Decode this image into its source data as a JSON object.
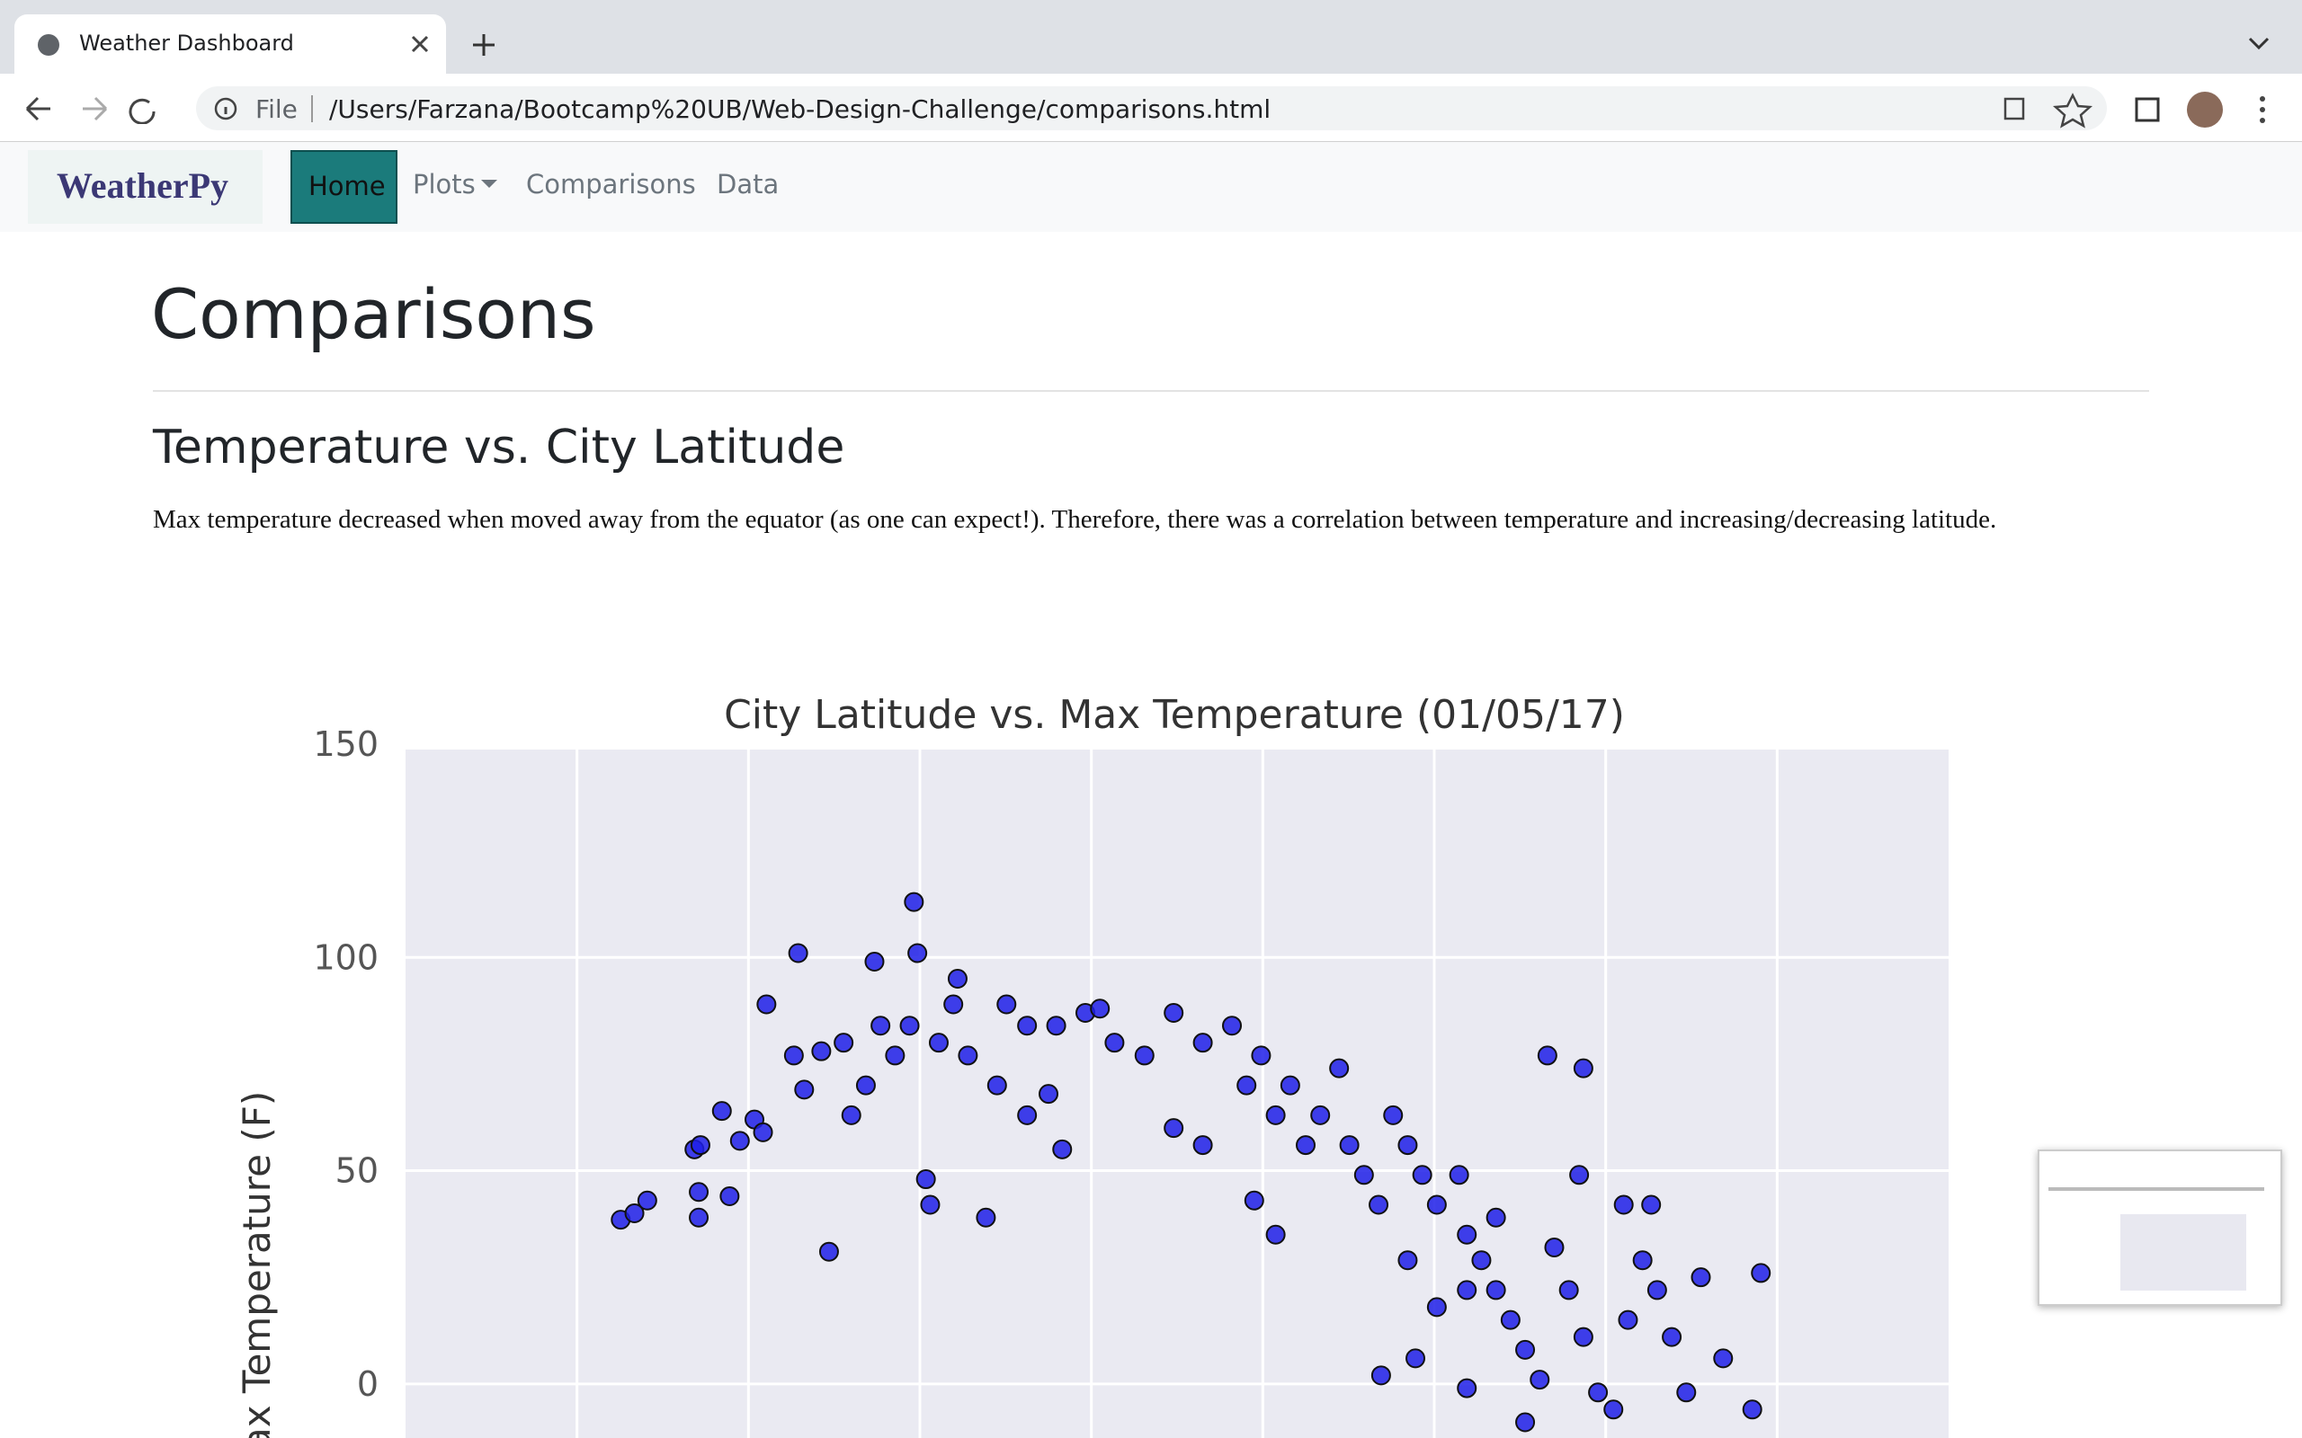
{
  "browser": {
    "tab_title": "Weather Dashboard",
    "scheme": "File",
    "url": "/Users/Farzana/Bootcamp%20UB/Web-Design-Challenge/comparisons.html"
  },
  "navbar": {
    "brand": "WeatherPy",
    "items": [
      "Home",
      "Plots",
      "Comparisons",
      "Data"
    ]
  },
  "content": {
    "heading": "Comparisons",
    "subheading": "Temperature vs. City Latitude",
    "paragraph": "Max temperature decreased when moved away from the equator (as one can expect!). Therefore, there was a correlation between temperature and increasing/decreasing latitude."
  },
  "chart_data": {
    "type": "scatter",
    "title": "City Latitude vs. Max Temperature (01/05/17)",
    "y_label": "Max Temperature (F)",
    "color": "#1f1fe8",
    "grid": true,
    "xlim": [
      -80,
      100
    ],
    "xticks": [
      -60,
      -40,
      -20,
      0,
      20,
      40,
      60,
      80
    ],
    "ylim": [
      -15,
      150
    ],
    "yticks": [
      0,
      50,
      100,
      150
    ],
    "x": [
      -54.9,
      -53.3,
      -51.8,
      -45.8,
      -45.8,
      -46.3,
      -45.6,
      -42.2,
      -43.1,
      -41,
      -37.9,
      -39.3,
      -38.3,
      -34.2,
      -34.7,
      -30.6,
      -31.5,
      -33.5,
      -28.9,
      -25.3,
      -20.7,
      -20.3,
      -19.3,
      -18.8,
      -15.6,
      -16.1,
      -12.3,
      -9.9,
      -24.6,
      -22.9,
      -26.3,
      -28,
      -21.2,
      -17.8,
      -14.4,
      -11,
      -7.5,
      -4.1,
      -0.7,
      1,
      2.7,
      6.2,
      9.6,
      13,
      16.4,
      19.8,
      23.2,
      25,
      26.7,
      28.9,
      30.1,
      31.8,
      33.5,
      35.2,
      36.9,
      38.6,
      40.3,
      42.9,
      43.8,
      45.5,
      47.2,
      48.9,
      50.6,
      52.3,
      53.2,
      57.4,
      56.9,
      54,
      55.7,
      57.4,
      59.1,
      60.9,
      62.6,
      64.3,
      66,
      67.7,
      69.4,
      71.1,
      73.7,
      77.1,
      78.1,
      62.1,
      65.3,
      50.6,
      43.8,
      33.8,
      37.8,
      21.5,
      19,
      13,
      9.6,
      -7.5,
      -5,
      -3.4,
      18.1,
      21.5,
      43.8,
      47.2,
      36.9,
      40.3
    ],
    "values": [
      38.5,
      40,
      43,
      39,
      45,
      55,
      56,
      44,
      64,
      57,
      89,
      62,
      59,
      101,
      77,
      31,
      78,
      69,
      80,
      99,
      113,
      101,
      48,
      42,
      95,
      89,
      39,
      89,
      84,
      77,
      70,
      63,
      84,
      80,
      77,
      70,
      84,
      84,
      87,
      88,
      80,
      77,
      87,
      80,
      84,
      77,
      70,
      56,
      63,
      74,
      56,
      49,
      42,
      63,
      56,
      49,
      42,
      49,
      35,
      29,
      22,
      15,
      8,
      1,
      77,
      74,
      49,
      32,
      22,
      11,
      -2,
      -6,
      15,
      29,
      22,
      11,
      -2,
      25,
      6,
      -6,
      26,
      42,
      42,
      -9,
      -1,
      2,
      6,
      35,
      43,
      56,
      60,
      63,
      68,
      55,
      70,
      63,
      22,
      39,
      29,
      18
    ]
  }
}
